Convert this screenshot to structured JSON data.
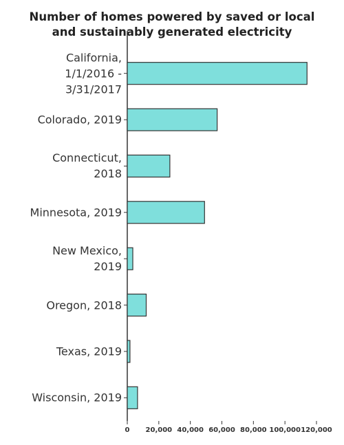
{
  "chart_data": {
    "type": "bar",
    "orientation": "horizontal",
    "title": "Number of homes powered by saved or local and sustainably generated electricity",
    "categories": [
      "California, 1/1/2016 - 3/31/2017",
      "Colorado, 2019",
      "Connecticut, 2018",
      "Minnesota, 2019",
      "New Mexico, 2019",
      "Oregon, 2018",
      "Texas, 2019",
      "Wisconsin, 2019"
    ],
    "values": [
      114000,
      57000,
      27000,
      49000,
      3500,
      12000,
      1700,
      6500
    ],
    "color": "#7fdfdc",
    "xlim": [
      0,
      120000
    ],
    "xticks": [
      0,
      {
        "value": 20000,
        "label": "20,000"
      },
      {
        "value": 40000,
        "label": "40,000"
      },
      {
        "value": 60000,
        "label": "60,000"
      },
      {
        "value": 80000,
        "label": "80,000"
      },
      {
        "value": 100000,
        "label": "100,000"
      },
      {
        "value": 120000,
        "label": "120,000"
      }
    ],
    "grid": false
  }
}
